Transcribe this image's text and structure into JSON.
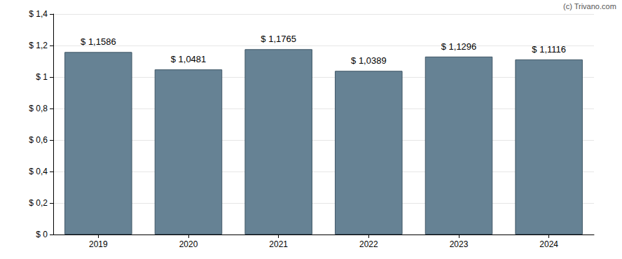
{
  "chart_data": {
    "type": "bar",
    "categories": [
      "2019",
      "2020",
      "2021",
      "2022",
      "2023",
      "2024"
    ],
    "values": [
      1.1586,
      1.0481,
      1.1765,
      1.0389,
      1.1296,
      1.1116
    ],
    "value_labels": [
      "$ 1,1586",
      "$ 1,0481",
      "$ 1,1765",
      "$ 1,0389",
      "$ 1,1296",
      "$ 1,1116"
    ],
    "data_labels": true,
    "color": "#668294",
    "ylim": [
      0,
      1.4
    ],
    "yticks": [
      {
        "value": 0,
        "label": "$ 0"
      },
      {
        "value": 0.2,
        "label": "$ 0,2"
      },
      {
        "value": 0.4,
        "label": "$ 0,4"
      },
      {
        "value": 0.6,
        "label": "$ 0,6"
      },
      {
        "value": 0.8,
        "label": "$ 0,8"
      },
      {
        "value": 1,
        "label": "$ 1"
      },
      {
        "value": 1.2,
        "label": "$ 1,2"
      },
      {
        "value": 1.4,
        "label": "$ 1,4"
      }
    ],
    "grid": true,
    "annotations": [
      "(c) Trivano.com"
    ]
  }
}
